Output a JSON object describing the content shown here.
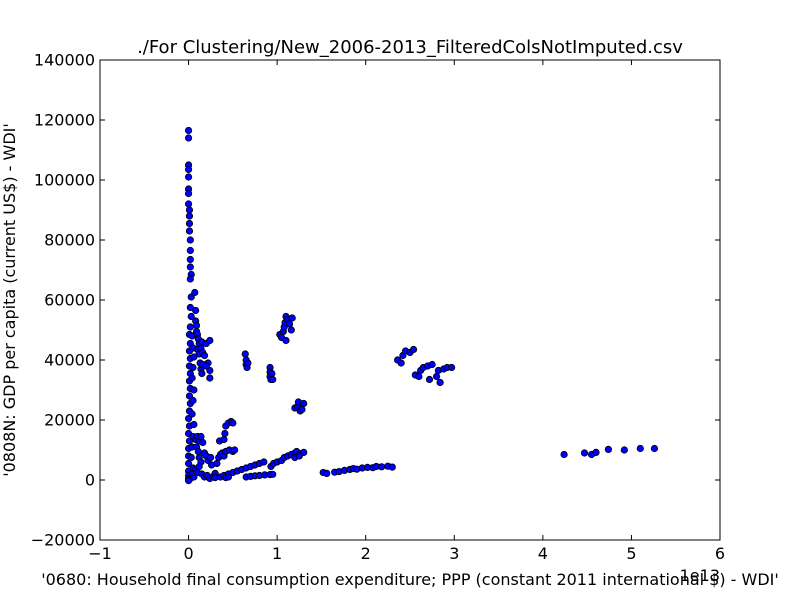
{
  "chart_data": {
    "type": "scatter",
    "title": "./For Clustering/New_2006-2013_FilteredColsNotImputed.csv",
    "xlabel": "'0680: Household final consumption expenditure; PPP  (constant 2011 international $) - WDI'",
    "ylabel": "'0808N: GDP per capita  (current US$) - WDI'",
    "x_scale_label": "1e13",
    "x_unit": 10000000000000.0,
    "xlim": [
      -1,
      6
    ],
    "ylim": [
      -20000,
      140000
    ],
    "x_ticks": [
      "−1",
      "0",
      "1",
      "2",
      "3",
      "4",
      "5",
      "6"
    ],
    "y_ticks": [
      "−20000",
      "0",
      "20000",
      "40000",
      "60000",
      "80000",
      "100000",
      "120000",
      "140000"
    ],
    "marker_color": "#0000ff",
    "marker_edge": "#000000",
    "grid": false,
    "legend": "none",
    "points": [
      [
        0.0,
        116500
      ],
      [
        0.0,
        114000
      ],
      [
        0.0,
        105000
      ],
      [
        0.0,
        103500
      ],
      [
        0.0,
        101000
      ],
      [
        0.0,
        97000
      ],
      [
        0.0,
        95500
      ],
      [
        0.0,
        92000
      ],
      [
        0.01,
        90000
      ],
      [
        0.01,
        88000
      ],
      [
        0.01,
        85500
      ],
      [
        0.01,
        83000
      ],
      [
        0.02,
        80000
      ],
      [
        0.02,
        76500
      ],
      [
        0.02,
        73500
      ],
      [
        0.02,
        71000
      ],
      [
        0.03,
        68500
      ],
      [
        0.02,
        67000
      ],
      [
        0.03,
        61000
      ],
      [
        0.02,
        57500
      ],
      [
        0.03,
        54500
      ],
      [
        0.02,
        51000
      ],
      [
        0.01,
        48500
      ],
      [
        0.02,
        45500
      ],
      [
        0.01,
        43000
      ],
      [
        0.02,
        40500
      ],
      [
        0.01,
        38000
      ],
      [
        0.02,
        35500
      ],
      [
        0.01,
        33000
      ],
      [
        0.02,
        30500
      ],
      [
        0.01,
        28000
      ],
      [
        0.02,
        25500
      ],
      [
        0.01,
        23000
      ],
      [
        0.0,
        20500
      ],
      [
        0.01,
        18000
      ],
      [
        0.0,
        15500
      ],
      [
        0.01,
        13000
      ],
      [
        0.0,
        10500
      ],
      [
        0.0,
        8000
      ],
      [
        0.0,
        5500
      ],
      [
        0.0,
        3000
      ],
      [
        0.0,
        1500
      ],
      [
        0.0,
        500
      ],
      [
        0.01,
        200
      ],
      [
        0.0,
        -200
      ],
      [
        0.04,
        48000
      ],
      [
        0.05,
        44000
      ],
      [
        0.06,
        41000
      ],
      [
        0.05,
        37500
      ],
      [
        0.04,
        34000
      ],
      [
        0.06,
        30000
      ],
      [
        0.05,
        26500
      ],
      [
        0.04,
        22000
      ],
      [
        0.06,
        18500
      ],
      [
        0.05,
        14500
      ],
      [
        0.04,
        11000
      ],
      [
        0.03,
        7500
      ],
      [
        0.05,
        4000
      ],
      [
        0.04,
        2000
      ],
      [
        0.06,
        1000
      ],
      [
        0.07,
        62500
      ],
      [
        0.08,
        56500
      ],
      [
        0.08,
        53000
      ],
      [
        0.09,
        51500
      ],
      [
        0.09,
        49500
      ],
      [
        0.1,
        48500
      ],
      [
        0.11,
        47000
      ],
      [
        0.12,
        45500
      ],
      [
        0.1,
        43500
      ],
      [
        0.12,
        42000
      ],
      [
        0.14,
        44000
      ],
      [
        0.15,
        46000
      ],
      [
        0.16,
        42500
      ],
      [
        0.18,
        41500
      ],
      [
        0.2,
        45500
      ],
      [
        0.24,
        46500
      ],
      [
        0.13,
        39000
      ],
      [
        0.14,
        37000
      ],
      [
        0.15,
        35500
      ],
      [
        0.16,
        38500
      ],
      [
        0.22,
        39000
      ],
      [
        0.24,
        36500
      ],
      [
        0.24,
        34000
      ],
      [
        0.2,
        38000
      ],
      [
        0.08,
        13500
      ],
      [
        0.1,
        14500
      ],
      [
        0.12,
        13000
      ],
      [
        0.14,
        14500
      ],
      [
        0.16,
        12500
      ],
      [
        0.09,
        11000
      ],
      [
        0.11,
        9500
      ],
      [
        0.12,
        7500
      ],
      [
        0.14,
        6000
      ],
      [
        0.18,
        9000
      ],
      [
        0.2,
        8000
      ],
      [
        0.22,
        6500
      ],
      [
        0.25,
        7500
      ],
      [
        0.26,
        5000
      ],
      [
        0.08,
        3500
      ],
      [
        0.1,
        2500
      ],
      [
        0.12,
        4500
      ],
      [
        0.15,
        2000
      ],
      [
        0.18,
        1000
      ],
      [
        0.21,
        1500
      ],
      [
        0.24,
        500
      ],
      [
        0.28,
        1200
      ],
      [
        0.3,
        2200
      ],
      [
        0.3,
        800
      ],
      [
        0.32,
        5500
      ],
      [
        0.34,
        7500
      ],
      [
        0.36,
        8500
      ],
      [
        0.38,
        9000
      ],
      [
        0.4,
        8000
      ],
      [
        0.42,
        9500
      ],
      [
        0.46,
        10000
      ],
      [
        0.5,
        9500
      ],
      [
        0.52,
        10000
      ],
      [
        0.35,
        13000
      ],
      [
        0.4,
        13500
      ],
      [
        0.41,
        15500
      ],
      [
        0.42,
        18000
      ],
      [
        0.45,
        19000
      ],
      [
        0.48,
        19500
      ],
      [
        0.5,
        19000
      ],
      [
        0.36,
        1000
      ],
      [
        0.4,
        1500
      ],
      [
        0.45,
        2000
      ],
      [
        0.5,
        2500
      ],
      [
        0.55,
        3000
      ],
      [
        0.6,
        3500
      ],
      [
        0.65,
        4000
      ],
      [
        0.7,
        4500
      ],
      [
        0.75,
        5000
      ],
      [
        0.8,
        5500
      ],
      [
        0.85,
        6000
      ],
      [
        0.42,
        800
      ],
      [
        0.45,
        1000
      ],
      [
        0.64,
        42000
      ],
      [
        0.65,
        40000
      ],
      [
        0.65,
        38500
      ],
      [
        0.66,
        37500
      ],
      [
        0.67,
        39000
      ],
      [
        0.65,
        1000
      ],
      [
        0.7,
        1200
      ],
      [
        0.75,
        1400
      ],
      [
        0.8,
        1500
      ],
      [
        0.86,
        1700
      ],
      [
        0.92,
        1800
      ],
      [
        0.95,
        1900
      ],
      [
        0.92,
        37500
      ],
      [
        0.92,
        36000
      ],
      [
        0.92,
        34500
      ],
      [
        0.93,
        33500
      ],
      [
        0.95,
        33500
      ],
      [
        0.94,
        35500
      ],
      [
        0.93,
        4500
      ],
      [
        0.96,
        5500
      ],
      [
        1.0,
        6000
      ],
      [
        1.05,
        6500
      ],
      [
        1.08,
        7500
      ],
      [
        1.12,
        8000
      ],
      [
        1.16,
        8500
      ],
      [
        1.2,
        9000
      ],
      [
        1.22,
        9500
      ],
      [
        1.26,
        8800
      ],
      [
        1.3,
        9200
      ],
      [
        1.2,
        7500
      ],
      [
        1.25,
        8000
      ],
      [
        1.03,
        48500
      ],
      [
        1.05,
        47500
      ],
      [
        1.07,
        49500
      ],
      [
        1.08,
        51000
      ],
      [
        1.09,
        52500
      ],
      [
        1.1,
        54500
      ],
      [
        1.12,
        53500
      ],
      [
        1.14,
        52000
      ],
      [
        1.16,
        50000
      ],
      [
        1.17,
        54000
      ],
      [
        1.1,
        46500
      ],
      [
        1.2,
        24000
      ],
      [
        1.23,
        24500
      ],
      [
        1.26,
        23000
      ],
      [
        1.28,
        23500
      ],
      [
        1.24,
        26000
      ],
      [
        1.3,
        25500
      ],
      [
        1.52,
        2500
      ],
      [
        1.56,
        2200
      ],
      [
        1.65,
        2600
      ],
      [
        1.7,
        2800
      ],
      [
        1.76,
        3200
      ],
      [
        1.82,
        3500
      ],
      [
        1.86,
        3800
      ],
      [
        1.9,
        3600
      ],
      [
        1.96,
        4000
      ],
      [
        2.02,
        4200
      ],
      [
        2.08,
        4100
      ],
      [
        2.12,
        4500
      ],
      [
        2.18,
        4400
      ],
      [
        2.25,
        4600
      ],
      [
        2.3,
        4300
      ],
      [
        2.36,
        40000
      ],
      [
        2.4,
        39000
      ],
      [
        2.42,
        41500
      ],
      [
        2.45,
        43000
      ],
      [
        2.5,
        42500
      ],
      [
        2.54,
        43500
      ],
      [
        2.56,
        35000
      ],
      [
        2.6,
        34500
      ],
      [
        2.62,
        36500
      ],
      [
        2.65,
        37500
      ],
      [
        2.7,
        38000
      ],
      [
        2.75,
        38500
      ],
      [
        2.72,
        33500
      ],
      [
        2.8,
        34500
      ],
      [
        2.82,
        36500
      ],
      [
        2.84,
        32500
      ],
      [
        2.88,
        37000
      ],
      [
        2.92,
        37500
      ],
      [
        2.97,
        37500
      ],
      [
        4.24,
        8500
      ],
      [
        4.47,
        9000
      ],
      [
        4.55,
        8500
      ],
      [
        4.6,
        9200
      ],
      [
        4.74,
        10200
      ],
      [
        4.92,
        10000
      ],
      [
        5.1,
        10500
      ],
      [
        5.26,
        10500
      ]
    ]
  }
}
